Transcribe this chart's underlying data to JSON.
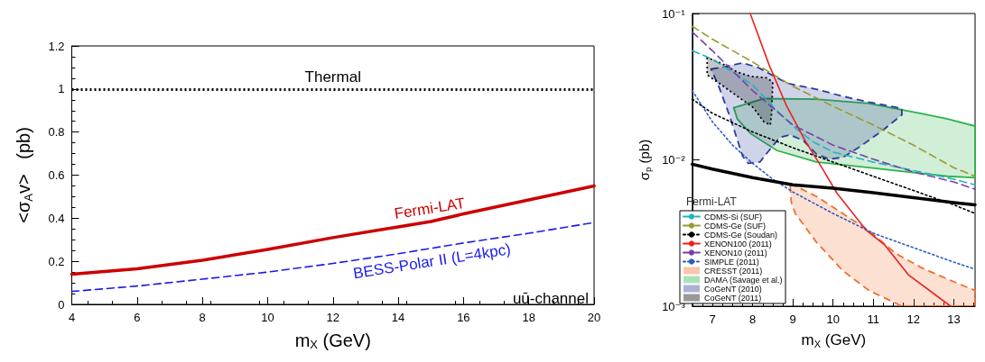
{
  "chart_data": [
    {
      "type": "line",
      "xlabel": "m$_{X}$ (GeV)",
      "ylabel": "<σ$_{A}$v>   (pb)",
      "xlim": [
        4,
        20
      ],
      "ylim": [
        0,
        1.2
      ],
      "xticks": [
        4,
        6,
        8,
        10,
        12,
        14,
        16,
        18,
        20
      ],
      "yticks": [
        0,
        0.2,
        0.4,
        0.6,
        0.8,
        1,
        1.2
      ],
      "grid": false,
      "legend": false,
      "x": [
        4,
        6,
        8,
        10,
        12,
        14,
        15,
        16,
        18,
        20
      ],
      "series": [
        {
          "name": "Fermi-LAT",
          "color": "#cc0000",
          "line_style": "solid",
          "values": [
            0.14,
            0.165,
            0.205,
            0.255,
            0.31,
            0.36,
            0.385,
            0.42,
            0.485,
            0.55
          ]
        },
        {
          "name": "BESS-Polar II (L=4kpc)",
          "color": "#1a1aee",
          "line_style": "dashed",
          "values": [
            0.06,
            0.085,
            0.117,
            0.15,
            0.19,
            0.235,
            0.26,
            0.285,
            0.33,
            0.38
          ]
        }
      ],
      "ref_lines": [
        {
          "axis": "y",
          "value": 1,
          "label": "Thermal",
          "color": "#000000",
          "line_style": "dotted"
        }
      ],
      "annotations": [
        "uū-channel"
      ]
    },
    {
      "type": "line",
      "xlabel": "m$_{X}$ (GeV)",
      "ylabel": "σ$_{p}$ (pb)",
      "log": "y",
      "xlim": [
        6.5,
        13.53
      ],
      "ylim": [
        0.001,
        0.1
      ],
      "xticks": [
        7,
        8,
        9,
        10,
        11,
        12,
        13
      ],
      "yticks": [
        {
          "value": 0.001,
          "label": "10⁻³"
        },
        {
          "value": 0.01,
          "label": "10⁻²"
        },
        {
          "value": 0.1,
          "label": "10⁻¹"
        }
      ],
      "grid": false,
      "legend": "bottom left",
      "series": [
        {
          "name": "CDMS-Si (SUF)",
          "color": "#1fb5c0",
          "line_style": "dashed",
          "x": [
            6.5,
            7,
            8,
            8.5,
            9,
            9.5,
            10,
            11,
            12,
            13,
            13.53
          ],
          "values": [
            0.0557,
            0.0488,
            0.0325,
            0.0232,
            0.017,
            0.0133,
            0.0113,
            0.00966,
            0.00845,
            0.00738,
            0.00675
          ]
        },
        {
          "name": "CDMS-Ge (SUF)",
          "color": "#9a9a30",
          "line_style": "dashed",
          "x": [
            6.5,
            7,
            8,
            9,
            10,
            11,
            12,
            13,
            13.53
          ],
          "values": [
            0.0817,
            0.0668,
            0.0466,
            0.0318,
            0.0232,
            0.0173,
            0.0126,
            0.00884,
            0.00772
          ]
        },
        {
          "name": "CDMS-Ge (Soudan)",
          "color": "#000000",
          "line_style": "dotted",
          "x": [
            6.5,
            7,
            8,
            9,
            10,
            11,
            12,
            13,
            13.53
          ],
          "values": [
            0.026,
            0.0208,
            0.0155,
            0.0121,
            0.00966,
            0.00772,
            0.00617,
            0.00493,
            0.0043
          ]
        },
        {
          "name": "XENON100 (2011)",
          "color": "#e8231f",
          "line_style": "solid",
          "x": [
            7.94,
            8.41,
            8.83,
            9.32,
            9.72,
            10.1,
            10.83,
            11.28,
            11.87,
            12.92
          ],
          "values": [
            0.1,
            0.0445,
            0.0238,
            0.0133,
            0.00884,
            0.0059,
            0.00329,
            0.00263,
            0.00164,
            0.001
          ]
        },
        {
          "name": "XENON10 (2011)",
          "color": "#7a3fa8",
          "line_style": "dashed",
          "x": [
            6.5,
            7,
            8,
            9,
            10,
            11,
            12,
            13,
            13.53
          ],
          "values": [
            0.0747,
            0.0557,
            0.0297,
            0.0173,
            0.0126,
            0.0101,
            0.00826,
            0.00706,
            0.0063
          ]
        },
        {
          "name": "SIMPLE (2011)",
          "color": "#2a5cc4",
          "line_style": "dotted",
          "x": [
            6.5,
            7,
            7.5,
            8,
            8.5,
            9,
            10,
            11,
            12,
            13,
            13.53
          ],
          "values": [
            0.0297,
            0.0182,
            0.0126,
            0.00946,
            0.00738,
            0.00603,
            0.0043,
            0.00315,
            0.00251,
            0.002,
            0.00179
          ]
        },
        {
          "name": "CRESST (2011)",
          "type": "area",
          "color": "#f07030",
          "line_style": "dashed",
          "x": [
            8.93,
            9.58,
            10.24,
            10.89,
            11.55,
            12.2,
            12.85,
            13.53,
            13.53,
            11.71,
            10.89,
            10.24,
            9.58,
            9.06,
            8.96,
            8.93
          ],
          "values": [
            0.0069,
            0.00564,
            0.0043,
            0.00329,
            0.0023,
            0.00183,
            0.00153,
            0.00128,
            0.001,
            0.001,
            0.00128,
            0.00175,
            0.00275,
            0.0043,
            0.00515,
            0.0069
          ]
        },
        {
          "name": "DAMA (Savage et al.)",
          "type": "area",
          "color": "#2db34a",
          "line_style": "solid",
          "x": [
            7.53,
            8.28,
            9.58,
            10.89,
            12.2,
            12.85,
            13.53,
            13.53,
            12.85,
            12.2,
            10.89,
            9.58,
            8.6,
            7.95,
            7.62,
            7.53
          ],
          "values": [
            0.0227,
            0.0262,
            0.026,
            0.0243,
            0.0207,
            0.019,
            0.017,
            0.00755,
            0.00772,
            0.00807,
            0.00884,
            0.00966,
            0.0116,
            0.0151,
            0.019,
            0.0227
          ]
        },
        {
          "name": "CoGeNT (2010)",
          "type": "area",
          "color": "#2a3c9a",
          "line_style": "dashed",
          "x": [
            6.97,
            7.36,
            7.75,
            8.15,
            8.54,
            8.87,
            9.58,
            10.24,
            10.89,
            11.71,
            11.71,
            11.22,
            10.63,
            10.24,
            9.9,
            9.58,
            9.25,
            8.93,
            8.67,
            8.41,
            8.18,
            7.89,
            7.75,
            7.43,
            7.17,
            6.97
          ],
          "values": [
            0.0417,
            0.0436,
            0.0459,
            0.0426,
            0.0372,
            0.0333,
            0.0304,
            0.0272,
            0.0248,
            0.0225,
            0.0203,
            0.0158,
            0.0121,
            0.0104,
            0.0101,
            0.011,
            0.0136,
            0.0148,
            0.0142,
            0.0116,
            0.00966,
            0.00946,
            0.0106,
            0.0199,
            0.0311,
            0.0417
          ]
        },
        {
          "name": "CoGeNT (2011)",
          "type": "area",
          "color": "#000000",
          "line_style": "dotted",
          "x": [
            6.87,
            6.87,
            7.23,
            7.62,
            8.02,
            8.28,
            8.44,
            8.47,
            8.5,
            8.34,
            7.95,
            7.62,
            7.23,
            6.87
          ],
          "values": [
            0.0499,
            0.038,
            0.0325,
            0.0272,
            0.0227,
            0.0182,
            0.0173,
            0.0208,
            0.034,
            0.0364,
            0.0372,
            0.0398,
            0.0456,
            0.0499
          ]
        },
        {
          "color": "#000000",
          "line_style": "solid",
          "x": [
            6.5,
            7,
            8,
            9,
            10,
            11,
            12,
            13,
            13.53
          ],
          "values": [
            0.00933,
            0.00865,
            0.00755,
            0.00675,
            0.0064,
            0.00596,
            0.00551,
            0.0051,
            0.00493
          ]
        }
      ],
      "annotations": [
        "Fermi-LAT"
      ]
    }
  ]
}
